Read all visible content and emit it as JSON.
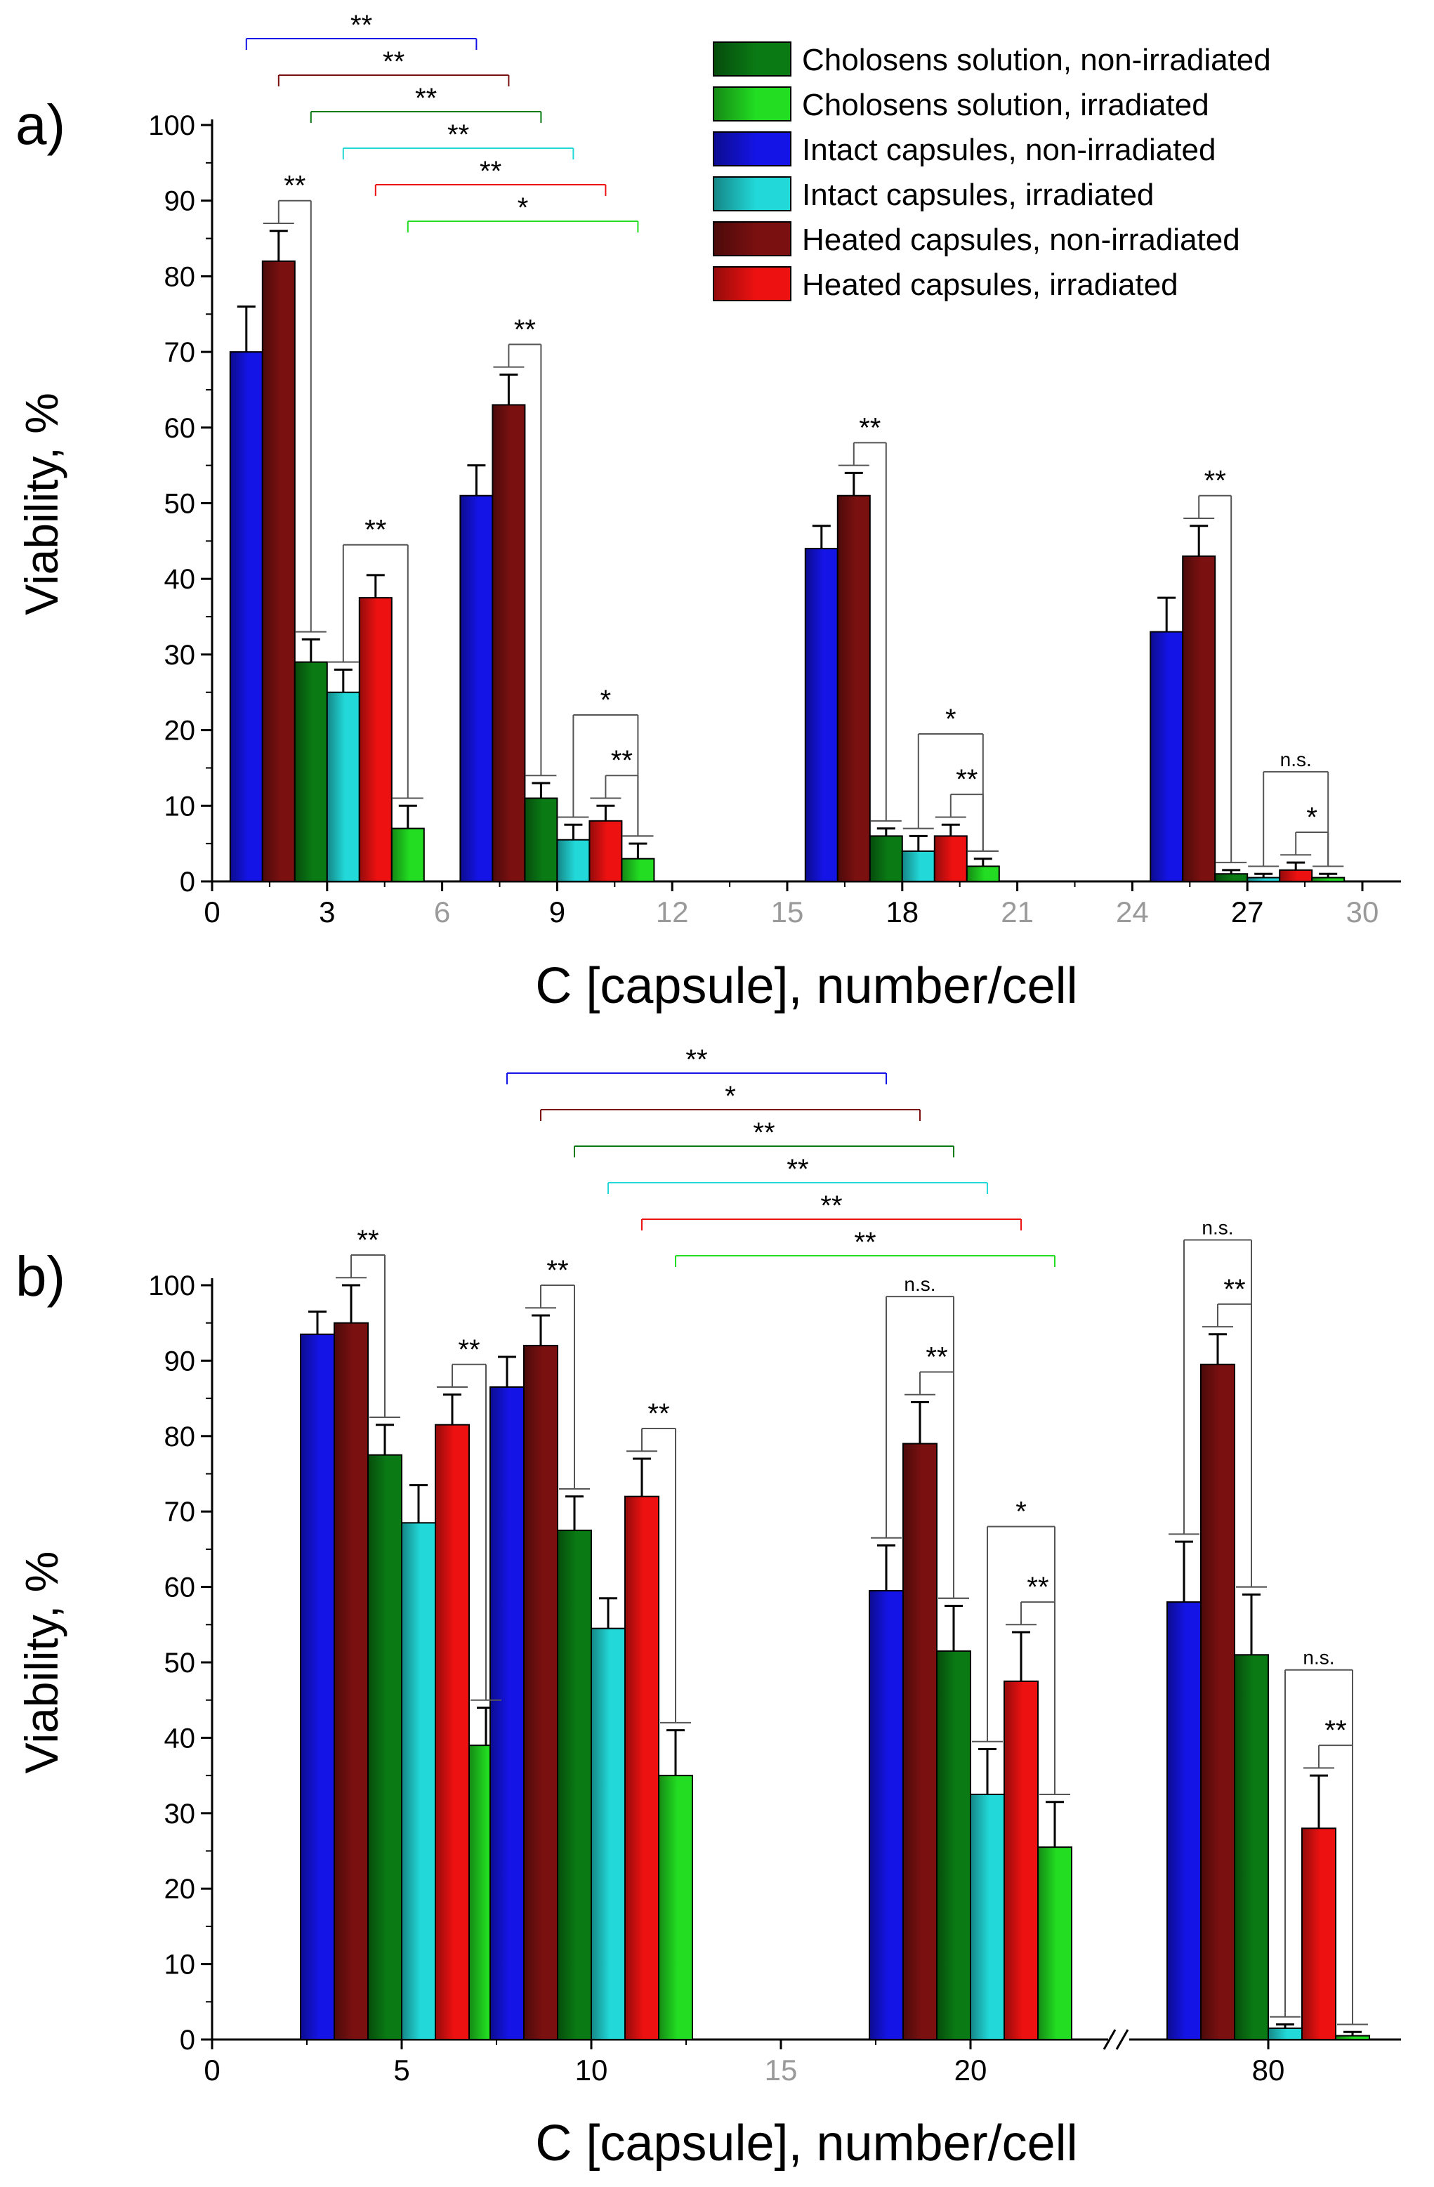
{
  "legend": {
    "position": "top-right of panel a",
    "entries": [
      {
        "name": "Cholosens solution, non-irradiated",
        "color": "#0a7a14"
      },
      {
        "name": "Cholosens solution, irradiated",
        "color": "#22dd22"
      },
      {
        "name": "Intact capsules, non-irradiated",
        "color": "#1414e6"
      },
      {
        "name": "Intact capsules, irradiated",
        "color": "#22d8d8"
      },
      {
        "name": "Heated capsules, non-irradiated",
        "color": "#7a1010"
      },
      {
        "name": "Heated capsules, irradiated",
        "color": "#ee1111"
      }
    ]
  },
  "chart_data": [
    {
      "type": "bar",
      "panel_label": "a)",
      "xlabel": "C [capsule], number/cell",
      "ylabel": "Viability, %",
      "ylim": [
        0,
        100
      ],
      "xlim": [
        0,
        31
      ],
      "xticks": [
        0,
        3,
        6,
        9,
        12,
        15,
        18,
        21,
        24,
        27,
        30
      ],
      "xticks_muted": [
        6,
        12,
        15,
        21,
        24,
        30
      ],
      "yticks": [
        0,
        10,
        20,
        30,
        40,
        50,
        60,
        70,
        80,
        90,
        100
      ],
      "grid": false,
      "groups": [
        {
          "x": 3,
          "bars": [
            {
              "series": "Intact capsules, non-irradiated",
              "value": 70,
              "error": 6
            },
            {
              "series": "Heated capsules, non-irradiated",
              "value": 82,
              "error": 4
            },
            {
              "series": "Cholosens solution, non-irradiated",
              "value": 29,
              "error": 3
            },
            {
              "series": "Intact capsules, irradiated",
              "value": 25,
              "error": 3
            },
            {
              "series": "Heated capsules, irradiated",
              "value": 37.5,
              "error": 3
            },
            {
              "series": "Cholosens solution, irradiated",
              "value": 7,
              "error": 3
            }
          ]
        },
        {
          "x": 9,
          "bars": [
            {
              "series": "Intact capsules, non-irradiated",
              "value": 51,
              "error": 4
            },
            {
              "series": "Heated capsules, non-irradiated",
              "value": 63,
              "error": 4
            },
            {
              "series": "Cholosens solution, non-irradiated",
              "value": 11,
              "error": 2
            },
            {
              "series": "Intact capsules, irradiated",
              "value": 5.5,
              "error": 2
            },
            {
              "series": "Heated capsules, irradiated",
              "value": 8,
              "error": 2
            },
            {
              "series": "Cholosens solution, irradiated",
              "value": 3,
              "error": 2
            }
          ]
        },
        {
          "x": 18,
          "bars": [
            {
              "series": "Intact capsules, non-irradiated",
              "value": 44,
              "error": 3
            },
            {
              "series": "Heated capsules, non-irradiated",
              "value": 51,
              "error": 3
            },
            {
              "series": "Cholosens solution, non-irradiated",
              "value": 6,
              "error": 1
            },
            {
              "series": "Intact capsules, irradiated",
              "value": 4,
              "error": 2
            },
            {
              "series": "Heated capsules, irradiated",
              "value": 6,
              "error": 1.5
            },
            {
              "series": "Cholosens solution, irradiated",
              "value": 2,
              "error": 1
            }
          ]
        },
        {
          "x": 27,
          "bars": [
            {
              "series": "Intact capsules, non-irradiated",
              "value": 33,
              "error": 4.5
            },
            {
              "series": "Heated capsules, non-irradiated",
              "value": 43,
              "error": 4
            },
            {
              "series": "Cholosens solution, non-irradiated",
              "value": 1,
              "error": 0.5
            },
            {
              "series": "Intact capsules, irradiated",
              "value": 0.5,
              "error": 0.5
            },
            {
              "series": "Heated capsules, irradiated",
              "value": 1.5,
              "error": 1
            },
            {
              "series": "Cholosens solution, irradiated",
              "value": 0.5,
              "error": 0.5
            }
          ]
        }
      ],
      "comparisons_across_groups": [
        {
          "series": "Intact capsules, non-irradiated",
          "label": "**"
        },
        {
          "series": "Heated capsules, non-irradiated",
          "label": "**"
        },
        {
          "series": "Cholosens solution, non-irradiated",
          "label": "**"
        },
        {
          "series": "Intact capsules, irradiated",
          "label": "**"
        },
        {
          "series": "Heated capsules, irradiated",
          "label": "**"
        },
        {
          "series": "Cholosens solution, irradiated",
          "label": "*"
        }
      ],
      "comparisons_within_groups": [
        {
          "x": 3,
          "pair": "non-irradiated",
          "label": "**"
        },
        {
          "x": 3,
          "pair": "irradiated",
          "label": "**"
        },
        {
          "x": 9,
          "pair": "non-irradiated",
          "label": "**"
        },
        {
          "x": 9,
          "pair": "irradiated-outer",
          "label": "*"
        },
        {
          "x": 9,
          "pair": "irradiated-inner",
          "label": "**"
        },
        {
          "x": 18,
          "pair": "non-irradiated",
          "label": "**"
        },
        {
          "x": 18,
          "pair": "irradiated-outer",
          "label": "*"
        },
        {
          "x": 18,
          "pair": "irradiated-inner",
          "label": "**"
        },
        {
          "x": 27,
          "pair": "non-irradiated",
          "label": "**"
        },
        {
          "x": 27,
          "pair": "irradiated-outer",
          "label": "n.s."
        },
        {
          "x": 27,
          "pair": "irradiated-inner",
          "label": "*"
        }
      ]
    },
    {
      "type": "bar",
      "panel_label": "b)",
      "xlabel": "C [capsule], number/cell",
      "ylabel": "Viability, %",
      "ylim": [
        0,
        100
      ],
      "yticks": [
        0,
        10,
        20,
        30,
        40,
        50,
        60,
        70,
        80,
        90,
        100
      ],
      "xticks": [
        "0",
        "5",
        "10",
        "15",
        "20",
        "80"
      ],
      "xticks_muted": [
        "15"
      ],
      "axis_break": "between 20 and 80",
      "grid": false,
      "groups": [
        {
          "x": 5,
          "bars": [
            {
              "series": "Intact capsules, non-irradiated",
              "value": 93.5,
              "error": 3
            },
            {
              "series": "Heated capsules, non-irradiated",
              "value": 95,
              "error": 5
            },
            {
              "series": "Cholosens solution, non-irradiated",
              "value": 77.5,
              "error": 4
            },
            {
              "series": "Intact capsules, irradiated",
              "value": 68.5,
              "error": 5
            },
            {
              "series": "Heated capsules, irradiated",
              "value": 81.5,
              "error": 4
            },
            {
              "series": "Cholosens solution, irradiated",
              "value": 39,
              "error": 5
            }
          ]
        },
        {
          "x": 10,
          "bars": [
            {
              "series": "Intact capsules, non-irradiated",
              "value": 86.5,
              "error": 4
            },
            {
              "series": "Heated capsules, non-irradiated",
              "value": 92,
              "error": 4
            },
            {
              "series": "Cholosens solution, non-irradiated",
              "value": 67.5,
              "error": 4.5
            },
            {
              "series": "Intact capsules, irradiated",
              "value": 54.5,
              "error": 4
            },
            {
              "series": "Heated capsules, irradiated",
              "value": 72,
              "error": 5
            },
            {
              "series": "Cholosens solution, irradiated",
              "value": 35,
              "error": 6
            }
          ]
        },
        {
          "x": 20,
          "bars": [
            {
              "series": "Intact capsules, non-irradiated",
              "value": 59.5,
              "error": 6
            },
            {
              "series": "Heated capsules, non-irradiated",
              "value": 79,
              "error": 5.5
            },
            {
              "series": "Cholosens solution, non-irradiated",
              "value": 51.5,
              "error": 6
            },
            {
              "series": "Intact capsules, irradiated",
              "value": 32.5,
              "error": 6
            },
            {
              "series": "Heated capsules, irradiated",
              "value": 47.5,
              "error": 6.5
            },
            {
              "series": "Cholosens solution, irradiated",
              "value": 25.5,
              "error": 6
            }
          ]
        },
        {
          "x": 80,
          "bars": [
            {
              "series": "Intact capsules, non-irradiated",
              "value": 58,
              "error": 8
            },
            {
              "series": "Heated capsules, non-irradiated",
              "value": 89.5,
              "error": 4
            },
            {
              "series": "Cholosens solution, non-irradiated",
              "value": 51,
              "error": 8
            },
            {
              "series": "Intact capsules, irradiated",
              "value": 1.5,
              "error": 0.5
            },
            {
              "series": "Heated capsules, irradiated",
              "value": 28,
              "error": 7
            },
            {
              "series": "Cholosens solution, irradiated",
              "value": 0.5,
              "error": 0.5
            }
          ]
        }
      ],
      "comparisons_across_groups": [
        {
          "series": "Intact capsules, non-irradiated",
          "label": "**"
        },
        {
          "series": "Heated capsules, non-irradiated",
          "label": "*"
        },
        {
          "series": "Cholosens solution, non-irradiated",
          "label": "**"
        },
        {
          "series": "Intact capsules, irradiated",
          "label": "**"
        },
        {
          "series": "Heated capsules, irradiated",
          "label": "**"
        },
        {
          "series": "Cholosens solution, irradiated",
          "label": "**"
        }
      ],
      "comparisons_within_groups": [
        {
          "x": 5,
          "pair": "non-irradiated",
          "label": "**"
        },
        {
          "x": 5,
          "pair": "irradiated",
          "label": "**"
        },
        {
          "x": 10,
          "pair": "non-irradiated",
          "label": "**"
        },
        {
          "x": 10,
          "pair": "irradiated",
          "label": "**"
        },
        {
          "x": 20,
          "pair": "non-irradiated-outer",
          "label": "n.s."
        },
        {
          "x": 20,
          "pair": "non-irradiated-inner",
          "label": "**"
        },
        {
          "x": 20,
          "pair": "irradiated-outer",
          "label": "*"
        },
        {
          "x": 20,
          "pair": "irradiated-inner",
          "label": "**"
        },
        {
          "x": 80,
          "pair": "non-irradiated-outer",
          "label": "n.s."
        },
        {
          "x": 80,
          "pair": "non-irradiated-inner",
          "label": "**"
        },
        {
          "x": 80,
          "pair": "irradiated-outer",
          "label": "n.s."
        },
        {
          "x": 80,
          "pair": "irradiated-inner",
          "label": "**"
        }
      ]
    }
  ]
}
